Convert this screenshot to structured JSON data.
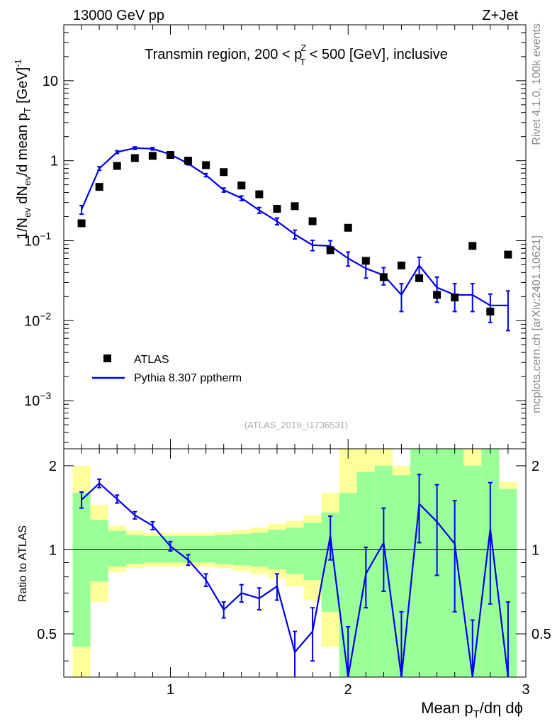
{
  "header": {
    "energy_label": "13000 GeV pp",
    "process_label": "Z+Jet",
    "side_label_top": "Rivet 4.1.0,  100k events",
    "side_label_bottom": "mcplots.cern.ch [arXiv:2401.10621]",
    "analysis_id": "(ATLAS_2019_I1736531)"
  },
  "colors": {
    "mc_line": "#0000ee",
    "band_inner": "#99ff99",
    "band_outer": "#ffff99",
    "data_marker": "#000000"
  },
  "chart_data": [
    {
      "type": "scatter",
      "panel": "main",
      "title": "Transmin region, 200 < pTZ < 500 [GeV], inclusive",
      "title_parts": {
        "pre": "Transmin region, 200 < p",
        "sup": "Z",
        "sub": "T",
        "post": " < 500 [GeV], inclusive"
      },
      "ylabel": "1/Nev dNev/d mean pT [GeV]-1",
      "xlim": [
        0.4,
        3.0
      ],
      "ylim": [
        0.00025,
        50
      ],
      "yscale": "log",
      "y_ticks": [
        {
          "value": 0.001,
          "base": "10",
          "exp": "−3"
        },
        {
          "value": 0.01,
          "base": "10",
          "exp": "−2"
        },
        {
          "value": 0.1,
          "base": "10",
          "exp": "−1"
        },
        {
          "value": 1,
          "label": "1"
        },
        {
          "value": 10,
          "label": "10"
        }
      ],
      "legend": {
        "position": "lower-left",
        "entries": [
          {
            "name": "ATLAS",
            "style": "marker"
          },
          {
            "name": "Pythia 8.307 pptherm",
            "style": "line"
          }
        ]
      },
      "series": [
        {
          "name": "ATLAS",
          "x": [
            0.5,
            0.6,
            0.7,
            0.8,
            0.9,
            1.0,
            1.1,
            1.2,
            1.3,
            1.4,
            1.5,
            1.6,
            1.7,
            1.8,
            1.9,
            2.0,
            2.1,
            2.2,
            2.3,
            2.4,
            2.5,
            2.6,
            2.7,
            2.8,
            2.9
          ],
          "y": [
            0.165,
            0.47,
            0.86,
            1.08,
            1.15,
            1.18,
            1.0,
            0.88,
            0.72,
            0.49,
            0.38,
            0.25,
            0.27,
            0.175,
            0.076,
            0.145,
            0.056,
            0.035,
            0.049,
            0.034,
            0.021,
            0.0195,
            0.086,
            0.013,
            0.067
          ]
        },
        {
          "name": "Pythia 8.307 pptherm",
          "x": [
            0.5,
            0.6,
            0.7,
            0.8,
            0.9,
            1.0,
            1.1,
            1.2,
            1.3,
            1.4,
            1.5,
            1.6,
            1.7,
            1.8,
            1.9,
            2.0,
            2.1,
            2.2,
            2.3,
            2.4,
            2.5,
            2.6,
            2.7,
            2.8,
            2.9
          ],
          "y": [
            0.245,
            0.8,
            1.28,
            1.44,
            1.41,
            1.2,
            0.92,
            0.66,
            0.43,
            0.34,
            0.24,
            0.175,
            0.12,
            0.088,
            0.086,
            0.06,
            0.045,
            0.037,
            0.021,
            0.049,
            0.026,
            0.021,
            0.021,
            0.0155,
            0.0155
          ],
          "err": [
            0.03,
            0.04,
            0.05,
            0.05,
            0.05,
            0.04,
            0.035,
            0.03,
            0.025,
            0.022,
            0.02,
            0.017,
            0.015,
            0.013,
            0.014,
            0.012,
            0.011,
            0.009,
            0.008,
            0.013,
            0.009,
            0.008,
            0.008,
            0.006,
            0.008
          ]
        }
      ]
    },
    {
      "type": "line",
      "panel": "ratio",
      "ylabel": "Ratio to ATLAS",
      "xlabel": "Mean pT/dη dϕ",
      "xlim": [
        0.4,
        3.0
      ],
      "ylim": [
        0.35,
        2.3
      ],
      "yscale": "log",
      "reference_line": 1,
      "x_ticks": [
        "1",
        "2",
        "3"
      ],
      "y_ticks": [
        "0.5",
        "1",
        "2"
      ],
      "bands": {
        "x_edges": [
          0.45,
          0.55,
          0.65,
          0.75,
          0.85,
          0.95,
          1.05,
          1.15,
          1.25,
          1.35,
          1.45,
          1.55,
          1.65,
          1.75,
          1.85,
          1.95,
          2.05,
          2.15,
          2.25,
          2.35,
          2.45,
          2.55,
          2.65,
          2.75,
          2.85,
          2.95
        ],
        "inner_lo": [
          0.45,
          0.77,
          0.87,
          0.89,
          0.9,
          0.9,
          0.9,
          0.9,
          0.89,
          0.88,
          0.87,
          0.85,
          0.82,
          0.78,
          0.6,
          0.35,
          0.35,
          0.35,
          0.35,
          0.35,
          0.35,
          0.35,
          0.35,
          0.35,
          0.35
        ],
        "inner_hi": [
          1.6,
          1.28,
          1.17,
          1.13,
          1.12,
          1.12,
          1.12,
          1.12,
          1.13,
          1.14,
          1.15,
          1.18,
          1.2,
          1.25,
          1.36,
          1.6,
          1.9,
          2.0,
          1.85,
          2.3,
          2.3,
          2.3,
          2.0,
          2.3,
          1.65
        ],
        "outer_lo": [
          0.35,
          0.65,
          0.83,
          0.86,
          0.87,
          0.87,
          0.87,
          0.87,
          0.86,
          0.84,
          0.82,
          0.79,
          0.74,
          0.66,
          0.45,
          0.35,
          0.35,
          0.35,
          0.35,
          0.35,
          0.35,
          0.35,
          0.35,
          0.35,
          0.35
        ],
        "outer_hi": [
          2.0,
          1.45,
          1.22,
          1.17,
          1.15,
          1.15,
          1.15,
          1.15,
          1.16,
          1.18,
          1.2,
          1.24,
          1.27,
          1.33,
          1.6,
          2.3,
          2.3,
          2.3,
          2.0,
          2.3,
          2.3,
          2.3,
          2.3,
          2.3,
          1.75
        ]
      },
      "series": [
        {
          "name": "Pythia 8.307 pptherm / ATLAS",
          "x": [
            0.5,
            0.6,
            0.7,
            0.8,
            0.9,
            1.0,
            1.1,
            1.2,
            1.3,
            1.4,
            1.5,
            1.6,
            1.7,
            1.8,
            1.9,
            2.0,
            2.1,
            2.2,
            2.3,
            2.4,
            2.5,
            2.6,
            2.7,
            2.8,
            2.9
          ],
          "y": [
            1.51,
            1.73,
            1.52,
            1.33,
            1.22,
            1.03,
            0.92,
            0.78,
            0.61,
            0.7,
            0.67,
            0.74,
            0.43,
            0.51,
            1.12,
            0.33,
            0.82,
            1.06,
            0.35,
            1.46,
            1.26,
            1.05,
            0.26,
            1.19,
            0.25
          ],
          "err": [
            0.1,
            0.06,
            0.05,
            0.04,
            0.04,
            0.04,
            0.04,
            0.04,
            0.04,
            0.05,
            0.06,
            0.08,
            0.08,
            0.11,
            0.2,
            0.2,
            0.2,
            0.35,
            0.25,
            0.4,
            0.45,
            0.45,
            0.3,
            0.55,
            0.4
          ]
        }
      ]
    }
  ]
}
